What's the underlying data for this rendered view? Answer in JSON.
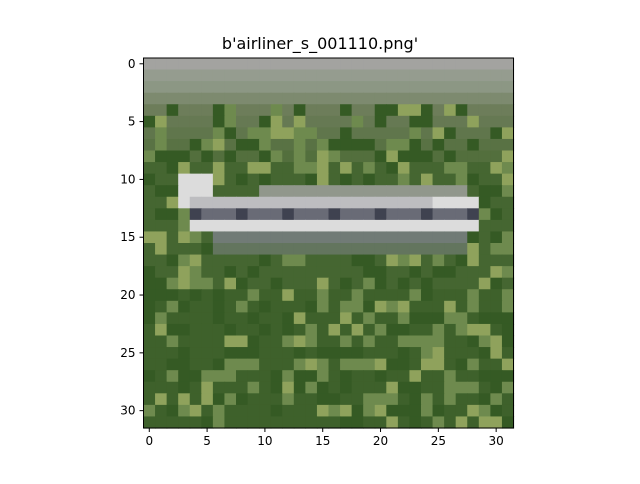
{
  "figure": {
    "title": "b'airliner_s_001110.png'"
  },
  "image_axes": {
    "x_ticks": [
      "0",
      "5",
      "10",
      "15",
      "20",
      "25",
      "30"
    ],
    "y_ticks": [
      "0",
      "5",
      "10",
      "15",
      "20",
      "25",
      "30"
    ],
    "x_range": [
      -0.5,
      31.5
    ],
    "y_range": [
      -0.5,
      31.5
    ],
    "y_inverted": true,
    "grid": false,
    "image_size": [
      32,
      32
    ]
  },
  "image": {
    "subject": "airliner on grass",
    "palette": {
      "sky_top": "#a3a3a0",
      "sky_band": "#8c9784",
      "horizon": "#6d7d5a",
      "grass_dark": "#355a24",
      "grass_mid": "#4c6b36",
      "grass_light": "#6e8a4e",
      "grass_highlight": "#8fa25c",
      "plane_white": "#dcdcdc",
      "plane_gray": "#a9a9ae",
      "plane_dark": "#3f4250",
      "plane_shadow": "#7a7f86"
    }
  }
}
